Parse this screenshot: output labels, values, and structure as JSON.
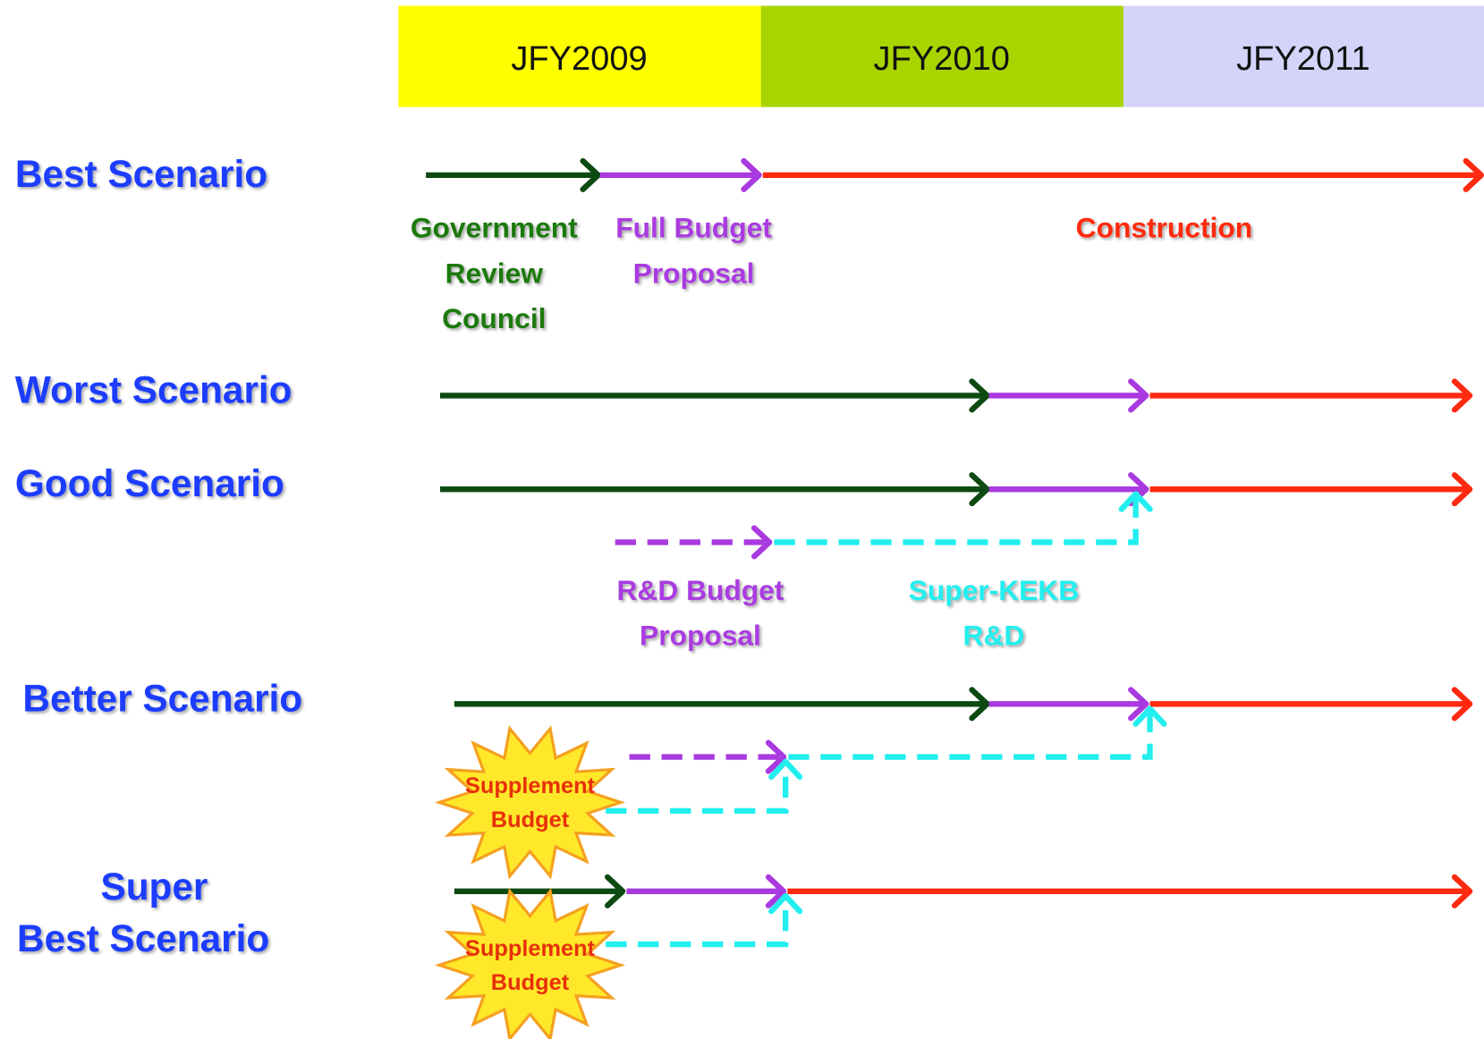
{
  "header": {
    "years": [
      "JFY2009",
      "JFY2010",
      "JFY2011"
    ]
  },
  "scenarios": [
    {
      "label": [
        "Best Scenario"
      ]
    },
    {
      "label": [
        "Worst Scenario"
      ]
    },
    {
      "label": [
        "Good Scenario"
      ]
    },
    {
      "label": [
        "Better Scenario"
      ]
    },
    {
      "label": [
        "Super",
        "Best Scenario"
      ]
    }
  ],
  "phase_labels": {
    "government_review": [
      "Government",
      "Review",
      "Council"
    ],
    "full_budget": [
      "Full Budget",
      "Proposal"
    ],
    "construction": [
      "Construction"
    ],
    "rd_budget": [
      "R&D Budget",
      "Proposal"
    ],
    "super_kekb": [
      "Super-KEKB",
      "R&D"
    ]
  },
  "supplement_budget": [
    [
      "Supplement",
      "Budget"
    ],
    [
      "Supplement",
      "Budget"
    ]
  ]
}
